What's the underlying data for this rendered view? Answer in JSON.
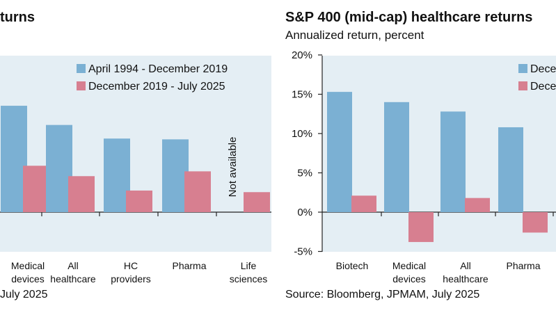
{
  "left_panel": {
    "title": "turns",
    "source": "July 2025"
  },
  "right_panel": {
    "title": "S&P 400 (mid-cap) healthcare returns",
    "subtitle": "Annualized return, percent",
    "source": "Source: Bloomberg, JPMAM, July 2025"
  },
  "colors": {
    "series1": "#7bb0d3",
    "series2": "#d77f90",
    "plot_bg": "#e4eef4"
  },
  "chart_data": [
    {
      "type": "bar",
      "title": "",
      "xlabel": "",
      "ylabel": "",
      "ylim": [
        -5,
        20
      ],
      "categories": [
        "Medical devices",
        "All healthcare",
        "HC providers",
        "Pharma",
        "Life sciences"
      ],
      "category_labels": [
        [
          "Medical",
          "devices"
        ],
        [
          "All",
          "healthcare"
        ],
        [
          "HC",
          "providers"
        ],
        [
          "Pharma"
        ],
        [
          "Life",
          "sciences"
        ]
      ],
      "series": [
        {
          "name": "April 1994 - December 2019",
          "values": [
            13.3,
            10.9,
            9.2,
            9.1,
            null
          ]
        },
        {
          "name": "December 2019 - July 2025",
          "values": [
            5.8,
            4.5,
            2.7,
            5.1,
            2.5
          ]
        }
      ],
      "annotations": [
        {
          "category": "Life sciences",
          "text": "Not available"
        }
      ],
      "legend": "top-right",
      "grid": false
    },
    {
      "type": "bar",
      "title": "S&P 400 (mid-cap) healthcare returns",
      "subtitle": "Annualized return, percent",
      "xlabel": "",
      "ylabel": "Annualized return, percent",
      "ylim": [
        -5,
        20
      ],
      "yticks": [
        "-5%",
        "0%",
        "5%",
        "10%",
        "15%",
        "20%"
      ],
      "categories": [
        "Biotech",
        "Medical devices",
        "All healthcare",
        "Pharma"
      ],
      "category_labels": [
        [
          "Biotech"
        ],
        [
          "Medical",
          "devices"
        ],
        [
          "All",
          "healthcare"
        ],
        [
          "Pharma"
        ]
      ],
      "series": [
        {
          "name": "Dece",
          "values": [
            15.3,
            14.0,
            12.8,
            10.8
          ]
        },
        {
          "name": "Dece",
          "values": [
            2.1,
            -3.8,
            1.8,
            -2.6
          ]
        }
      ],
      "legend": "top-right",
      "grid": false
    }
  ]
}
